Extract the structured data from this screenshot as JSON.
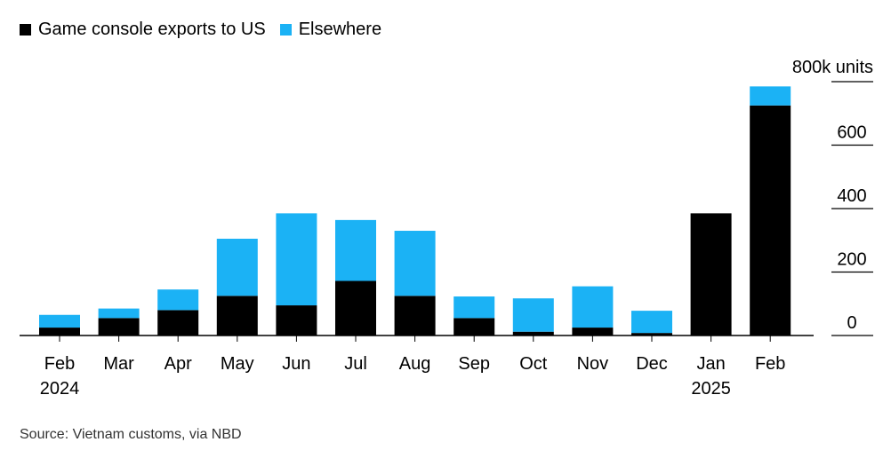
{
  "chart_data": {
    "type": "bar",
    "stacked": true,
    "categories": [
      "Feb",
      "Mar",
      "Apr",
      "May",
      "Jun",
      "Jul",
      "Aug",
      "Sep",
      "Oct",
      "Nov",
      "Dec",
      "Jan",
      "Feb"
    ],
    "year_labels": [
      "2024",
      "",
      "",
      "",
      "",
      "",
      "",
      "",
      "",
      "",
      "",
      "2025",
      ""
    ],
    "series": [
      {
        "name": "Game console exports to US",
        "color": "#000000",
        "values": [
          25,
          55,
          80,
          125,
          95,
          172,
          125,
          55,
          12,
          25,
          8,
          385,
          725
        ]
      },
      {
        "name": "Elsewhere",
        "color": "#1bb2f5",
        "values": [
          40,
          30,
          65,
          180,
          290,
          192,
          205,
          68,
          105,
          130,
          70,
          0,
          60
        ]
      }
    ],
    "y_ticks": [
      0,
      200,
      400,
      600
    ],
    "ylabel": "800k units",
    "ylim": [
      0,
      800
    ],
    "y_axis_position": "right",
    "legend_position": "top-left"
  },
  "source": "Source: Vietnam customs, via NBD"
}
